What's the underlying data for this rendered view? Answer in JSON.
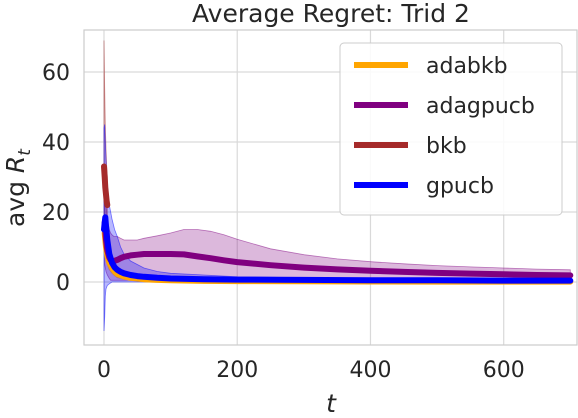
{
  "chart_data": {
    "type": "line",
    "title": "Average Regret: Trid 2",
    "xlabel": "t",
    "ylabel_prefix": "avg ",
    "ylabel_symbol": "R",
    "ylabel_subscript": "t",
    "xlim": [
      -30,
      710
    ],
    "ylim": [
      -18,
      72
    ],
    "xticks": [
      0,
      200,
      400,
      600
    ],
    "yticks": [
      0,
      20,
      40,
      60
    ],
    "grid": true,
    "legend_position": "top-right",
    "series": [
      {
        "name": "adabkb",
        "color": "#ffa500",
        "x": [
          1,
          3,
          5,
          8,
          12,
          16,
          20,
          30,
          40,
          60,
          80,
          100,
          150,
          200,
          300,
          400,
          500,
          600,
          700
        ],
        "y": [
          14,
          10,
          7.5,
          5.5,
          4.0,
          3.0,
          2.3,
          1.6,
          1.2,
          0.8,
          0.6,
          0.5,
          0.3,
          0.25,
          0.2,
          0.15,
          0.1,
          0.1,
          0.1
        ],
        "lower": [
          10,
          7,
          5,
          3.5,
          2.5,
          1.8,
          1.2,
          0.8,
          0.5,
          0.3,
          0.2,
          0.1,
          0,
          0,
          0,
          0,
          0,
          0,
          0
        ],
        "upper": [
          18,
          13,
          10,
          7.5,
          5.5,
          4.2,
          3.4,
          2.4,
          1.9,
          1.3,
          1.0,
          0.9,
          0.6,
          0.5,
          0.4,
          0.3,
          0.2,
          0.2,
          0.2
        ]
      },
      {
        "name": "adagpucb",
        "color": "#800080",
        "x": [
          1,
          3,
          5,
          8,
          10,
          12,
          15,
          20,
          25,
          30,
          40,
          50,
          60,
          80,
          100,
          120,
          140,
          160,
          180,
          200,
          250,
          300,
          350,
          400,
          450,
          500,
          550,
          600,
          650,
          700
        ],
        "y": [
          17,
          12,
          9,
          7,
          6.3,
          6.0,
          6.0,
          6.3,
          6.8,
          7.2,
          7.6,
          7.8,
          8.0,
          8.0,
          8.0,
          7.9,
          7.3,
          6.8,
          6.2,
          5.7,
          4.8,
          4.1,
          3.6,
          3.2,
          2.9,
          2.6,
          2.4,
          2.2,
          2.0,
          1.9
        ],
        "lower": [
          5,
          3,
          2,
          1,
          0.5,
          0.5,
          0.5,
          0.5,
          0.5,
          0.5,
          0.5,
          0.5,
          0.5,
          0.5,
          0.5,
          0.5,
          0.5,
          0.5,
          0.5,
          0.5,
          0.5,
          0.5,
          0.5,
          0.5,
          0.5,
          0.5,
          0.5,
          0.5,
          0.5,
          0.5
        ],
        "upper": [
          28,
          22,
          18,
          15,
          14,
          13.5,
          13,
          13,
          12.5,
          12,
          12,
          12,
          12.5,
          13.2,
          14,
          15,
          15,
          14.5,
          13.5,
          12.2,
          9.5,
          7.8,
          6.6,
          5.8,
          5.2,
          4.7,
          4.3,
          4.0,
          3.7,
          3.5
        ]
      },
      {
        "name": "bkb",
        "color": "#a52a2a",
        "x": [
          0,
          1,
          2,
          3,
          4,
          5
        ],
        "y": [
          33,
          30,
          27,
          25,
          23,
          22
        ],
        "lower": [
          10,
          12,
          14,
          16,
          17,
          18
        ],
        "upper": [
          69,
          55,
          45,
          38,
          33,
          30
        ]
      },
      {
        "name": "gpucb",
        "color": "#0000ff",
        "x": [
          0,
          1,
          2,
          3,
          5,
          8,
          12,
          16,
          20,
          25,
          30,
          40,
          50,
          60,
          80,
          100,
          150,
          200,
          300,
          400,
          500,
          600,
          700
        ],
        "y": [
          15,
          17,
          18.5,
          16,
          12,
          8,
          5.5,
          4.2,
          3.5,
          2.9,
          2.5,
          2.0,
          1.7,
          1.5,
          1.2,
          1.0,
          0.8,
          0.7,
          0.6,
          0.5,
          0.5,
          0.4,
          0.4
        ],
        "lower": [
          -14,
          -10,
          -4,
          -2,
          -1,
          -0.5,
          0,
          0,
          0,
          0,
          0,
          0,
          0,
          0,
          0,
          0,
          0,
          0,
          0,
          0,
          0,
          0,
          0
        ],
        "upper": [
          44,
          45,
          40,
          35,
          28,
          22,
          18,
          15,
          13,
          10,
          8,
          6,
          5,
          4,
          3,
          2.5,
          2,
          1.5,
          1.2,
          1,
          0.9,
          0.8,
          0.8
        ]
      }
    ]
  }
}
